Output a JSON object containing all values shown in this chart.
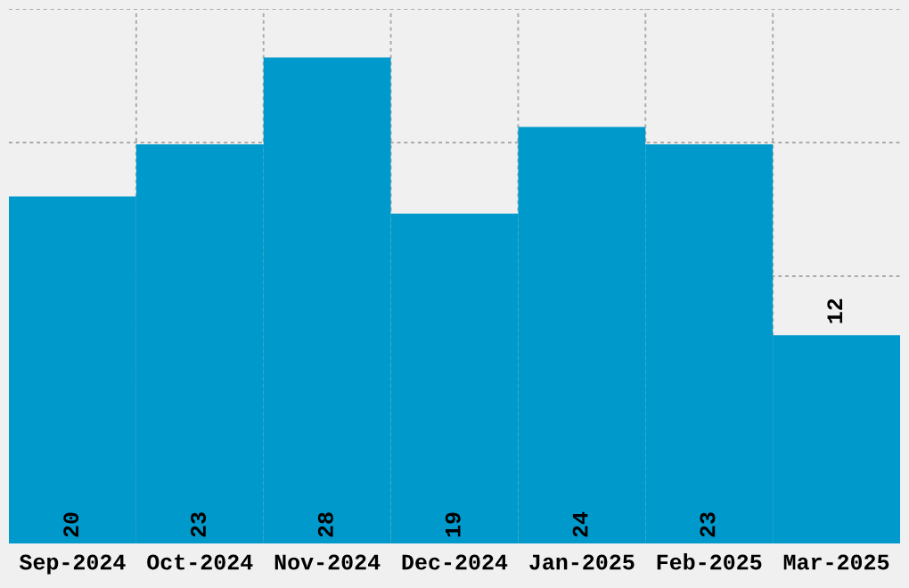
{
  "chart_data": {
    "type": "bar",
    "categories": [
      "Sep-2024",
      "Oct-2024",
      "Nov-2024",
      "Dec-2024",
      "Jan-2025",
      "Feb-2025",
      "Mar-2025"
    ],
    "values": [
      20,
      23,
      28,
      19,
      24,
      23,
      12
    ],
    "color": "#0099cc",
    "ylim": [
      0,
      30.8
    ],
    "tick_labels": "x",
    "grid": true,
    "data_labels": true
  }
}
